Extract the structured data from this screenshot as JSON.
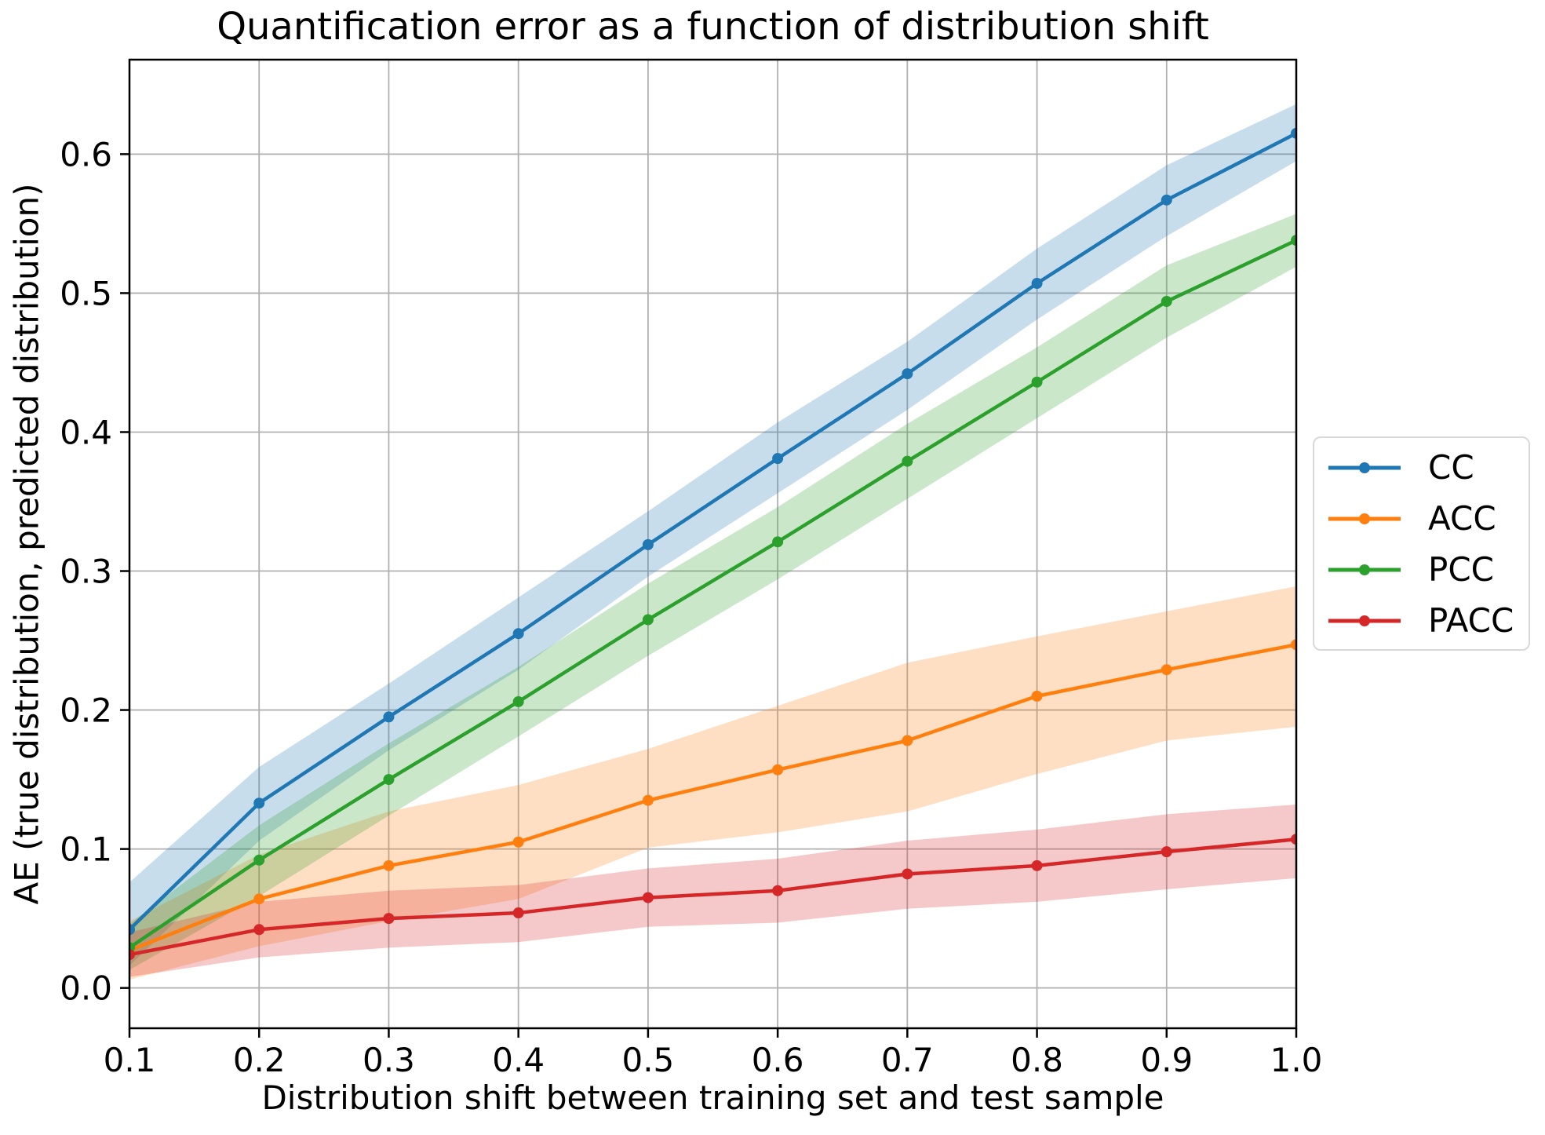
{
  "chart_data": {
    "type": "line",
    "title": "Quantification error as a function of distribution shift",
    "xlabel": "Distribution shift between training set and test sample",
    "ylabel": "AE (true distribution, predicted distribution)",
    "x": [
      0.1,
      0.2,
      0.3,
      0.4,
      0.5,
      0.6,
      0.7,
      0.8,
      0.9,
      1.0
    ],
    "x_tick_labels": [
      "0.1",
      "0.2",
      "0.3",
      "0.4",
      "0.5",
      "0.6",
      "0.7",
      "0.8",
      "0.9",
      "1.0"
    ],
    "y_tick_labels": [
      "0.0",
      "0.1",
      "0.2",
      "0.3",
      "0.4",
      "0.5",
      "0.6"
    ],
    "xlim": [
      0.1,
      1.0
    ],
    "ylim": [
      -0.029,
      0.668
    ],
    "grid": true,
    "grid_color": "#b0b0b0",
    "band_alpha": 0.25,
    "legend_position": "outside-right",
    "series": [
      {
        "name": "CC",
        "color": "#1f77b4",
        "values": [
          0.042,
          0.133,
          0.195,
          0.255,
          0.319,
          0.381,
          0.442,
          0.507,
          0.567,
          0.615
        ],
        "band_lower": [
          0.016,
          0.106,
          0.171,
          0.229,
          0.296,
          0.356,
          0.416,
          0.481,
          0.541,
          0.595
        ],
        "band_upper": [
          0.076,
          0.159,
          0.219,
          0.281,
          0.343,
          0.407,
          0.465,
          0.532,
          0.592,
          0.636
        ]
      },
      {
        "name": "ACC",
        "color": "#ff7f0e",
        "values": [
          0.027,
          0.064,
          0.088,
          0.105,
          0.135,
          0.157,
          0.178,
          0.21,
          0.229,
          0.247
        ],
        "band_lower": [
          0.006,
          0.03,
          0.048,
          0.064,
          0.101,
          0.112,
          0.127,
          0.154,
          0.178,
          0.188
        ],
        "band_upper": [
          0.048,
          0.096,
          0.127,
          0.146,
          0.172,
          0.203,
          0.234,
          0.253,
          0.271,
          0.289
        ]
      },
      {
        "name": "PCC",
        "color": "#2ca02c",
        "values": [
          0.029,
          0.092,
          0.15,
          0.206,
          0.265,
          0.321,
          0.379,
          0.436,
          0.494,
          0.538
        ],
        "band_lower": [
          0.013,
          0.066,
          0.124,
          0.181,
          0.239,
          0.294,
          0.352,
          0.41,
          0.468,
          0.519
        ],
        "band_upper": [
          0.046,
          0.117,
          0.176,
          0.231,
          0.291,
          0.346,
          0.406,
          0.461,
          0.52,
          0.557
        ]
      },
      {
        "name": "PACC",
        "color": "#d62728",
        "values": [
          0.024,
          0.042,
          0.05,
          0.054,
          0.065,
          0.07,
          0.082,
          0.088,
          0.098,
          0.107
        ],
        "band_lower": [
          0.008,
          0.022,
          0.029,
          0.033,
          0.044,
          0.047,
          0.057,
          0.062,
          0.071,
          0.079
        ],
        "band_upper": [
          0.04,
          0.062,
          0.07,
          0.074,
          0.086,
          0.093,
          0.106,
          0.114,
          0.125,
          0.132
        ]
      }
    ]
  }
}
